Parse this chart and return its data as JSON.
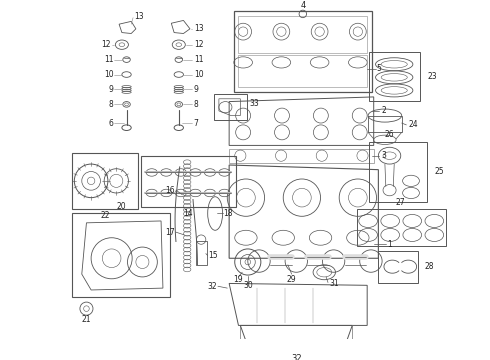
{
  "bg_color": "#ffffff",
  "fig_width": 4.9,
  "fig_height": 3.6,
  "dpi": 100,
  "dark": "#222222",
  "mid": "#555555",
  "light": "#888888"
}
